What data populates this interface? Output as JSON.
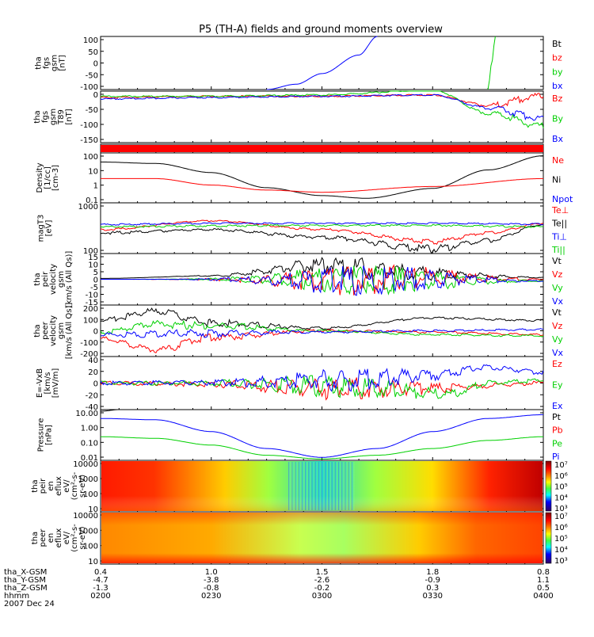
{
  "title": "P5 (TH-A) fields and ground moments overview",
  "colors": {
    "black": "#000000",
    "red": "#ff0000",
    "green": "#00d000",
    "blue": "#0000ff"
  },
  "panels": [
    {
      "ylabel": [
        "tha",
        "fgs",
        "gsm",
        "[nT]"
      ],
      "ticks": [
        "100",
        "50",
        "0",
        "-50",
        "-100"
      ],
      "legend": [
        {
          "text": "Bt",
          "color": "black"
        },
        {
          "text": "bz",
          "color": "red"
        },
        {
          "text": "by",
          "color": "green"
        },
        {
          "text": "bx",
          "color": "blue"
        }
      ]
    },
    {
      "ylabel": [
        "tha",
        "fgs",
        "gsm",
        "T89",
        "[nT]"
      ],
      "ticks": [
        "0",
        "-50",
        "-100",
        "-150"
      ],
      "legend": [
        {
          "text": "Bz",
          "color": "red"
        },
        {
          "text": "By",
          "color": "green"
        },
        {
          "text": "Bx",
          "color": "blue"
        }
      ]
    },
    {
      "ylabel": [],
      "ticks": [],
      "legend": []
    },
    {
      "ylabel": [
        "Density",
        "[1/cc]",
        "[cm-3]"
      ],
      "ticks": [
        "100",
        "10",
        "1",
        "0.1"
      ],
      "legend": [
        {
          "text": "Ne",
          "color": "red"
        },
        {
          "text": "Ni",
          "color": "black"
        },
        {
          "text": "Npot",
          "color": "blue"
        }
      ]
    },
    {
      "ylabel": [
        "magT3",
        "[eV]"
      ],
      "ticks": [
        "1000",
        "100"
      ],
      "legend": [
        {
          "text": "Te⊥",
          "color": "red"
        },
        {
          "text": "Te||",
          "color": "black"
        },
        {
          "text": "Ti⊥",
          "color": "blue"
        },
        {
          "text": "Ti||",
          "color": "green"
        }
      ]
    },
    {
      "ylabel": [
        "tha",
        "peir",
        "velocity",
        "gsm",
        "[km/s (All Qs)]"
      ],
      "ticks": [
        "15",
        "10",
        "5",
        "0",
        "-5",
        "-10",
        "-15"
      ],
      "legend": [
        {
          "text": "Vt",
          "color": "black"
        },
        {
          "text": "Vz",
          "color": "red"
        },
        {
          "text": "Vy",
          "color": "green"
        },
        {
          "text": "Vx",
          "color": "blue"
        }
      ]
    },
    {
      "ylabel": [
        "tha",
        "peer",
        "velocity",
        "gsm",
        "[km/s (All Qs)]"
      ],
      "ticks": [
        "200",
        "100",
        "0",
        "-100",
        "-200"
      ],
      "legend": [
        {
          "text": "Vt",
          "color": "black"
        },
        {
          "text": "Vz",
          "color": "red"
        },
        {
          "text": "Vy",
          "color": "green"
        },
        {
          "text": "Vx",
          "color": "blue"
        }
      ]
    },
    {
      "ylabel": [
        "E=-VxB",
        "[km/s",
        "[mV/m]"
      ],
      "ticks": [
        "40",
        "20",
        "0",
        "-20",
        "-40"
      ],
      "legend": [
        {
          "text": "Ez",
          "color": "red"
        },
        {
          "text": "Ey",
          "color": "green"
        },
        {
          "text": "Ex",
          "color": "blue"
        }
      ]
    },
    {
      "ylabel": [
        "Pressure",
        "[nPa]"
      ],
      "ticks": [
        "10.00",
        "1.00",
        "0.10",
        "0.01"
      ],
      "legend": [
        {
          "text": "Pt",
          "color": "black"
        },
        {
          "text": "Pb",
          "color": "red"
        },
        {
          "text": "Pe",
          "color": "green"
        },
        {
          "text": "Pi",
          "color": "blue"
        }
      ]
    },
    {
      "ylabel": [
        "tha",
        "peir",
        "en",
        "eflux",
        "eV/",
        "(cm²-s-",
        "sr-eV)"
      ],
      "ticks": [
        "10000",
        "1000",
        "100",
        "10"
      ],
      "legend": []
    },
    {
      "ylabel": [
        "tha",
        "peer",
        "en",
        "eflux",
        "eV/",
        "(cm²-s-",
        "sr-eV)"
      ],
      "ticks": [
        "10000",
        "1000",
        "100",
        "10"
      ],
      "legend": []
    }
  ],
  "colorbar_labels": [
    "10⁷",
    "10⁶",
    "10⁵",
    "10⁴",
    "10³"
  ],
  "xaxis": {
    "row_labels": [
      "tha_X-GSM",
      "tha_Y-GSM",
      "tha_Z-GSM",
      "hhmm",
      "2007 Dec 24"
    ],
    "columns": [
      [
        "0.4",
        "-4.7",
        "-1.3",
        "0200"
      ],
      [
        "1.0",
        "-3.8",
        "-0.8",
        "0230"
      ],
      [
        "1.5",
        "-2.6",
        "-0.2",
        "0300"
      ],
      [
        "1.8",
        "-0.9",
        "0.3",
        "0330"
      ],
      [
        "0.8",
        "1.1",
        "0.5",
        "0400"
      ]
    ]
  },
  "chart_data": [
    {
      "type": "line",
      "title": "P5 (TH-A) fields and ground moments overview",
      "xlabel": "hhmm",
      "x": [
        "0200",
        "0230",
        "0300",
        "0330",
        "0400"
      ],
      "ylabel": "tha fgs gsm [nT]",
      "ylim": [
        -100,
        100
      ],
      "series": [
        {
          "name": "bx",
          "x": [
            "0245",
            "0253",
            "0300",
            "0310",
            "0315"
          ],
          "values": [
            -100,
            -80,
            -40,
            30,
            100
          ]
        },
        {
          "name": "by",
          "x": [
            "0345",
            "0346",
            "0347"
          ],
          "values": [
            -100,
            0,
            100
          ]
        },
        {
          "name": "bx",
          "x": [
            "0353",
            "0353"
          ],
          "values": [
            100,
            -100
          ]
        }
      ]
    },
    {
      "type": "line",
      "ylabel": "tha fgs gsm T89 [nT]",
      "ylim": [
        -175,
        25
      ],
      "series": [
        {
          "name": "Bz",
          "x": [
            "0200",
            "0230",
            "0300",
            "0330",
            "0345",
            "0400"
          ],
          "values": [
            0,
            5,
            5,
            10,
            -30,
            5
          ]
        },
        {
          "name": "By",
          "x": [
            "0200",
            "0230",
            "0300",
            "0330",
            "0345",
            "0400"
          ],
          "values": [
            5,
            5,
            10,
            30,
            -60,
            -110
          ]
        },
        {
          "name": "Bx",
          "x": [
            "0200",
            "0230",
            "0300",
            "0330",
            "0345",
            "0400"
          ],
          "values": [
            -5,
            0,
            5,
            10,
            -40,
            -80
          ]
        }
      ]
    },
    {
      "type": "line",
      "ylabel": "Density [1/cc] [cm-3]",
      "ylim": [
        0.1,
        200
      ],
      "log": true,
      "series": [
        {
          "name": "Ni",
          "x": [
            "0200",
            "0215",
            "0230",
            "0245",
            "0300",
            "0312",
            "0330",
            "0345",
            "0400"
          ],
          "values": [
            50,
            40,
            10,
            1.0,
            0.3,
            0.2,
            0.9,
            15,
            130
          ]
        },
        {
          "name": "Ne",
          "x": [
            "0200",
            "0215",
            "0230",
            "0245",
            "0300",
            "0330",
            "0400"
          ],
          "values": [
            4,
            4,
            1.5,
            0.7,
            0.5,
            1.2,
            4
          ]
        }
      ]
    },
    {
      "type": "line",
      "ylabel": "magT3 [eV]",
      "ylim": [
        50,
        1500
      ],
      "log": true,
      "series": [
        {
          "name": "Te||",
          "x": [
            "0200",
            "0230",
            "0300",
            "0330",
            "0345",
            "0400"
          ],
          "values": [
            200,
            250,
            150,
            70,
            120,
            350
          ]
        },
        {
          "name": "Te⊥",
          "x": [
            "0200",
            "0230",
            "0300",
            "0330",
            "0345",
            "0400"
          ],
          "values": [
            250,
            450,
            250,
            110,
            200,
            380
          ]
        },
        {
          "name": "Ti⊥",
          "x": [
            "0200",
            "0230",
            "0300",
            "0330",
            "0400"
          ],
          "values": [
            350,
            380,
            380,
            380,
            360
          ]
        },
        {
          "name": "Ti||",
          "x": [
            "0200",
            "0230",
            "0300",
            "0330",
            "0400"
          ],
          "values": [
            300,
            320,
            330,
            330,
            300
          ]
        }
      ]
    },
    {
      "type": "line",
      "ylabel": "tha peir velocity gsm [km/s (All Qs)]",
      "ylim": [
        -15,
        15
      ],
      "series": [
        {
          "name": "Vt",
          "x": [
            "0200",
            "0230",
            "0300",
            "0330",
            "0400"
          ],
          "values": [
            0.5,
            2,
            8,
            3,
            1
          ]
        },
        {
          "name": "Vz",
          "x": [
            "0200",
            "0230",
            "0300",
            "0330",
            "0400"
          ],
          "values": [
            0,
            0,
            -1,
            1,
            0
          ]
        },
        {
          "name": "Vy",
          "x": [
            "0200",
            "0230",
            "0300",
            "0330",
            "0400"
          ],
          "values": [
            0,
            0,
            0,
            -1,
            -1
          ]
        },
        {
          "name": "Vx",
          "x": [
            "0200",
            "0230",
            "0300",
            "0330",
            "0400"
          ],
          "values": [
            0,
            0,
            -1,
            0,
            -1
          ]
        }
      ]
    },
    {
      "type": "line",
      "ylabel": "tha peer velocity gsm [km/s (All Qs)]",
      "ylim": [
        -200,
        200
      ],
      "series": [
        {
          "name": "Vt",
          "x": [
            "0200",
            "0215",
            "0230",
            "0300",
            "0330",
            "0400"
          ],
          "values": [
            80,
            150,
            60,
            20,
            100,
            80
          ]
        },
        {
          "name": "Vz",
          "x": [
            "0200",
            "0215",
            "0230",
            "0300",
            "0330",
            "0400"
          ],
          "values": [
            -60,
            -150,
            -50,
            0,
            -10,
            -30
          ]
        },
        {
          "name": "Vy",
          "x": [
            "0200",
            "0215",
            "0230",
            "0300",
            "0330",
            "0400"
          ],
          "values": [
            -10,
            50,
            40,
            0,
            -30,
            -40
          ]
        },
        {
          "name": "Vx",
          "x": [
            "0200",
            "0230",
            "0300",
            "0330",
            "0400"
          ],
          "values": [
            -30,
            -20,
            -10,
            0,
            10
          ]
        }
      ]
    },
    {
      "type": "line",
      "ylabel": "E=-VxB [km/s [mV/m]",
      "ylim": [
        -50,
        50
      ],
      "series": [
        {
          "name": "Ez",
          "x": [
            "0200",
            "0230",
            "0300",
            "0330",
            "0400"
          ],
          "values": [
            0,
            -2,
            -10,
            -10,
            0
          ]
        },
        {
          "name": "Ey",
          "x": [
            "0200",
            "0230",
            "0300",
            "0335",
            "0345",
            "0400"
          ],
          "values": [
            0,
            0,
            -5,
            -20,
            0,
            5
          ]
        },
        {
          "name": "Ex",
          "x": [
            "0200",
            "0230",
            "0300",
            "0330",
            "0345",
            "0400"
          ],
          "values": [
            0,
            1,
            5,
            15,
            30,
            20
          ]
        }
      ]
    },
    {
      "type": "line",
      "ylabel": "Pressure [nPa]",
      "ylim": [
        0.01,
        10
      ],
      "log": true,
      "series": [
        {
          "name": "Pt",
          "x": [
            "0200",
            "0205"
          ],
          "values": [
            8,
            10
          ]
        },
        {
          "name": "Pi",
          "x": [
            "0200",
            "0215",
            "0230",
            "0245",
            "0300",
            "0315",
            "0330",
            "0345",
            "0400"
          ],
          "values": [
            3,
            2.5,
            0.5,
            0.05,
            0.015,
            0.05,
            0.5,
            3,
            5
          ]
        },
        {
          "name": "Pe",
          "x": [
            "0200",
            "0215",
            "0230",
            "0245",
            "0300",
            "0315",
            "0330",
            "0345",
            "0400"
          ],
          "values": [
            0.25,
            0.2,
            0.08,
            0.02,
            0.012,
            0.02,
            0.05,
            0.15,
            0.25
          ]
        }
      ]
    },
    {
      "type": "heatmap",
      "ylabel": "tha peir en eflux eV/(cm²-s-sr-eV)",
      "ylim": [
        5,
        30000
      ],
      "log": true,
      "colorbar": [
        "10³",
        "10⁴",
        "10⁵",
        "10⁶",
        "10⁷"
      ]
    },
    {
      "type": "heatmap",
      "ylabel": "tha peer en eflux eV/(cm²-s-sr-eV)",
      "ylim": [
        5,
        30000
      ],
      "log": true,
      "colorbar": [
        "10³",
        "10⁴",
        "10⁵",
        "10⁶",
        "10⁷"
      ]
    }
  ]
}
